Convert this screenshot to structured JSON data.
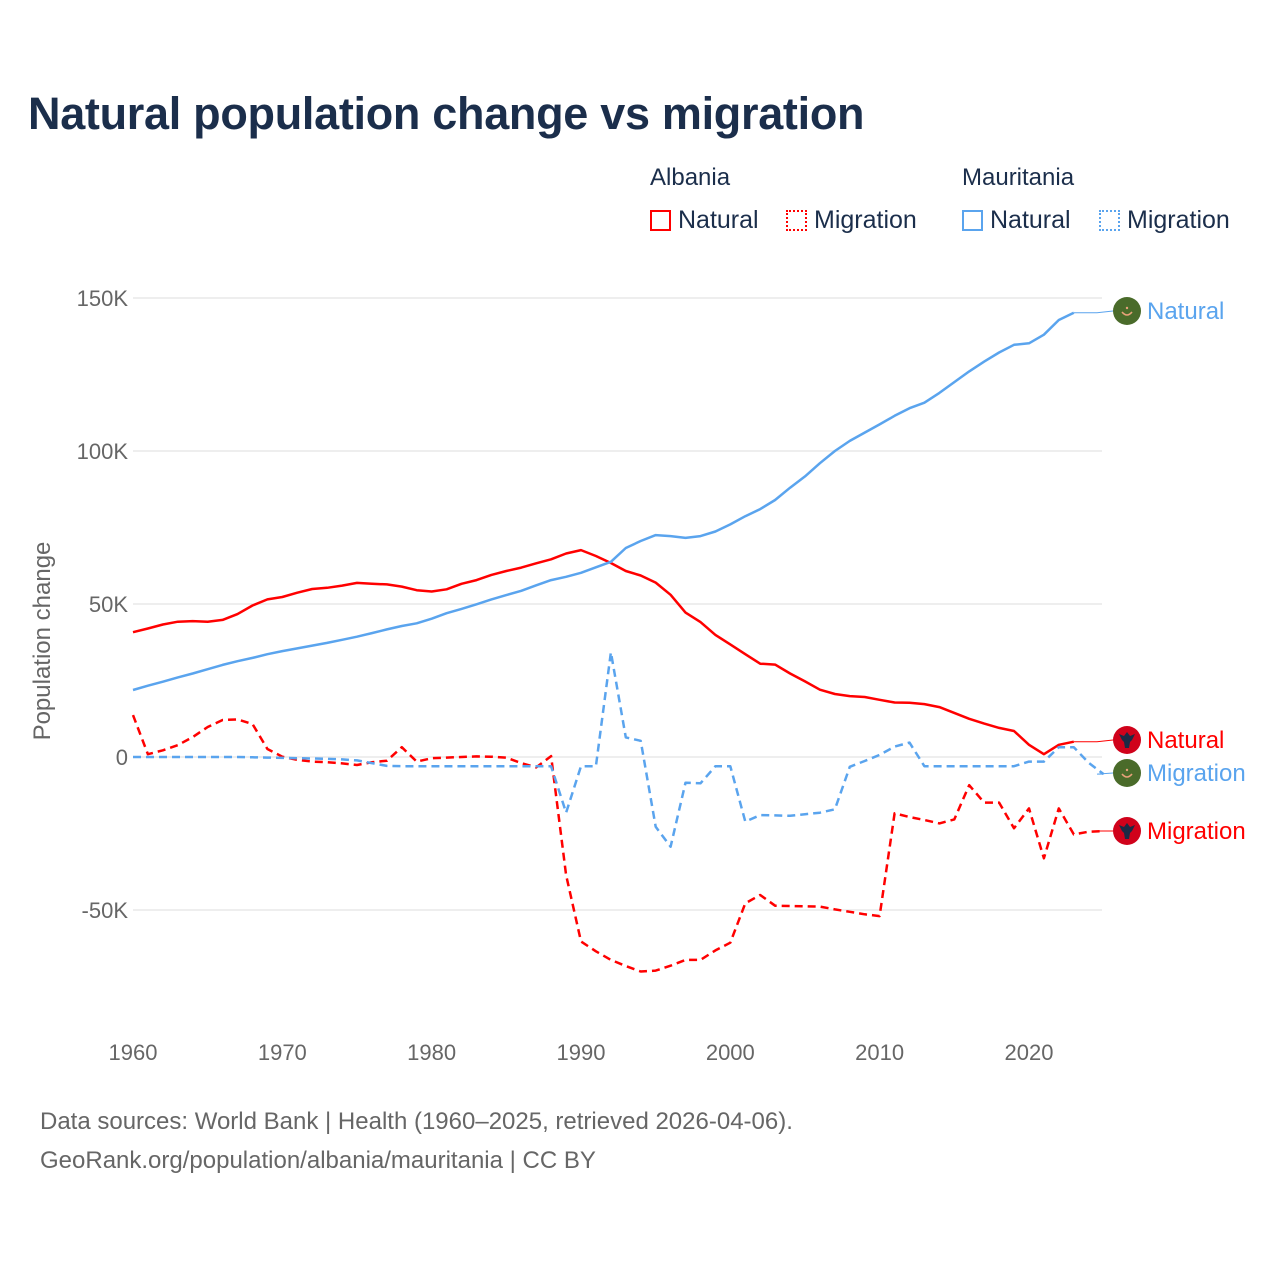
{
  "title": "Natural population change vs migration",
  "legend": {
    "groups": [
      {
        "name": "Albania",
        "items": [
          "Natural",
          "Migration"
        ],
        "color": "#ff0000"
      },
      {
        "name": "Mauritania",
        "items": [
          "Natural",
          "Migration"
        ],
        "color": "#5aa4ee"
      }
    ]
  },
  "footer": {
    "line1": "Data sources: World Bank | Health (1960–2025, retrieved 2026-04-06).",
    "line2": "GeoRank.org/population/albania/mauritania | CC BY"
  },
  "chart_data": {
    "type": "line",
    "title": "Natural population change vs migration",
    "xlabel": "",
    "ylabel": "Population change",
    "xlim": [
      1960,
      2025
    ],
    "ylim": [
      -80000,
      155000
    ],
    "grid": true,
    "legend_position": "top-right",
    "xticks": [
      1960,
      1970,
      1980,
      1990,
      2000,
      2010,
      2020
    ],
    "xtick_labels": [
      "1960",
      "1970",
      "1980",
      "1990",
      "2000",
      "2010",
      "2020"
    ],
    "yticks": [
      150000,
      100000,
      50000,
      0,
      -50000
    ],
    "ytick_labels": [
      "150K",
      "100K",
      "50K",
      "0",
      "-50K"
    ],
    "series": [
      {
        "name": "Albania Natural",
        "country": "Albania",
        "kind": "Natural",
        "end_label": "Natural",
        "color": "#ff0000",
        "dash": "solid",
        "flag": "albania",
        "x_start": 1960,
        "values": [
          40800,
          42000,
          43300,
          44200,
          44400,
          44200,
          44800,
          46700,
          49500,
          51500,
          52300,
          53700,
          54900,
          55300,
          56000,
          56900,
          56600,
          56400,
          55700,
          54500,
          54100,
          54800,
          56600,
          57800,
          59500,
          60800,
          61900,
          63300,
          64600,
          66500,
          67600,
          65700,
          63400,
          60800,
          59300,
          57000,
          53000,
          47200,
          44100,
          39900,
          36800,
          33600,
          30500,
          30200,
          27300,
          24700,
          22000,
          20600,
          19900,
          19600,
          18700,
          17800,
          17700,
          17300,
          16300,
          14400,
          12500,
          10900,
          9500,
          8500,
          4000,
          900,
          4000,
          5000
        ]
      },
      {
        "name": "Albania Migration",
        "country": "Albania",
        "kind": "Migration",
        "end_label": "Migration",
        "color": "#ff0000",
        "dash": "dashed",
        "flag": "albania",
        "x_start": 1960,
        "values": [
          13700,
          900,
          2200,
          3900,
          6500,
          9800,
          12100,
          12300,
          10800,
          2600,
          100,
          -900,
          -1500,
          -1700,
          -2100,
          -2600,
          -1700,
          -1200,
          3200,
          -1500,
          -400,
          -200,
          0,
          200,
          100,
          -200,
          -2000,
          -3400,
          300,
          -38600,
          -60300,
          -63500,
          -66300,
          -68300,
          -70100,
          -69800,
          -68200,
          -66300,
          -66300,
          -63200,
          -60700,
          -47800,
          -45100,
          -48600,
          -48700,
          -48800,
          -48900,
          -49800,
          -50600,
          -51400,
          -52000,
          -18400,
          -19600,
          -20600,
          -21700,
          -20400,
          -9200,
          -14900,
          -14900,
          -23300,
          -16800,
          -33100,
          -16800,
          -25300,
          -24400,
          -24200
        ]
      },
      {
        "name": "Mauritania Natural",
        "country": "Mauritania",
        "kind": "Natural",
        "end_label": "Natural",
        "color": "#5aa4ee",
        "dash": "solid",
        "flag": "mauritania",
        "x_start": 1960,
        "values": [
          21900,
          23300,
          24600,
          26000,
          27300,
          28700,
          30100,
          31300,
          32400,
          33600,
          34600,
          35500,
          36400,
          37300,
          38300,
          39300,
          40500,
          41700,
          42800,
          43700,
          45200,
          47000,
          48400,
          49900,
          51500,
          52900,
          54300,
          56100,
          57800,
          58900,
          60200,
          62000,
          63800,
          68300,
          70600,
          72500,
          72200,
          71600,
          72200,
          73700,
          76000,
          78700,
          81000,
          84000,
          88000,
          91700,
          96000,
          100000,
          103300,
          106000,
          108700,
          111500,
          114000,
          115800,
          119000,
          122500,
          126000,
          129200,
          132200,
          134700,
          135200,
          138000,
          142800,
          145200
        ]
      },
      {
        "name": "Mauritania Migration",
        "country": "Mauritania",
        "kind": "Migration",
        "end_label": "Migration",
        "color": "#5aa4ee",
        "dash": "dashed",
        "flag": "mauritania",
        "x_start": 1960,
        "values": [
          0,
          0,
          0,
          0,
          0,
          0,
          0,
          0,
          -100,
          -200,
          -300,
          -400,
          -500,
          -600,
          -800,
          -1100,
          -2000,
          -2900,
          -3000,
          -3000,
          -3000,
          -3000,
          -3000,
          -3000,
          -3000,
          -3000,
          -3000,
          -3000,
          -3000,
          -18200,
          -3000,
          -3000,
          34200,
          6400,
          5300,
          -22800,
          -29300,
          -8400,
          -8600,
          -3000,
          -3000,
          -21100,
          -19000,
          -19100,
          -19200,
          -18700,
          -18200,
          -17100,
          -3200,
          -1300,
          700,
          3400,
          4700,
          -3000,
          -3000,
          -3000,
          -3000,
          -3000,
          -3000,
          -3000,
          -1500,
          -1500,
          3200,
          3200,
          -1900,
          -5600
        ]
      }
    ],
    "label_order": [
      "Mauritania Natural",
      "Albania Natural",
      "Mauritania Migration",
      "Albania Migration"
    ]
  }
}
